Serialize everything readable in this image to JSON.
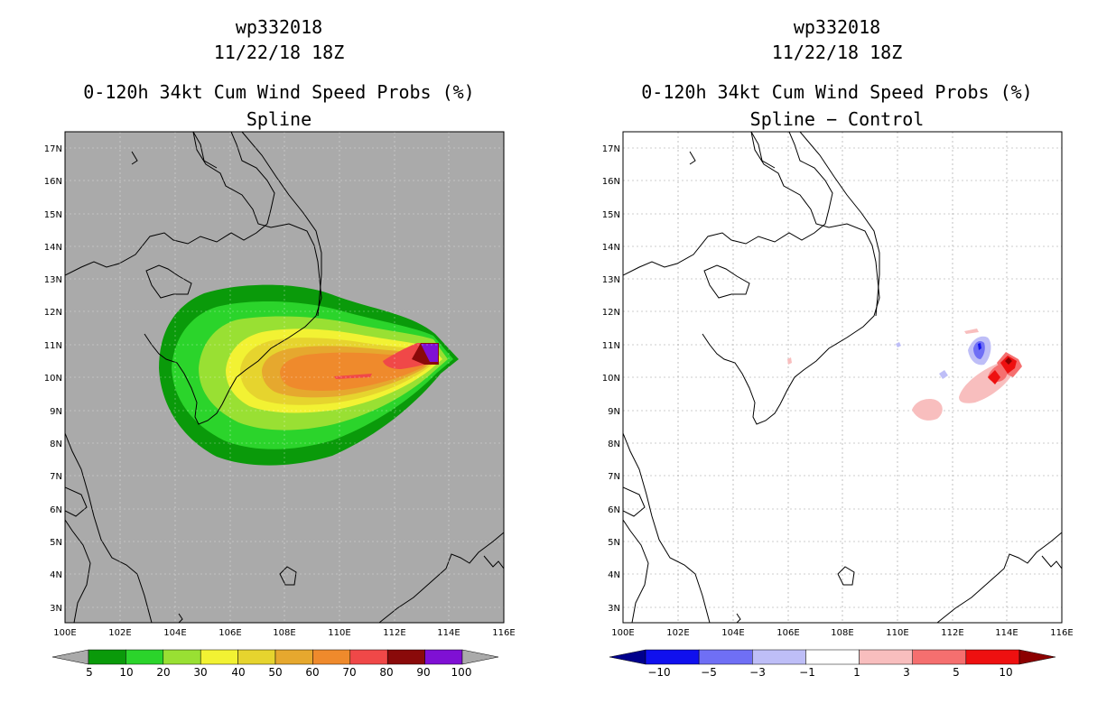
{
  "panels": [
    {
      "id": "left",
      "storm_id": "wp332018",
      "datetime": "11/22/18 18Z",
      "product_title": "0-120h 34kt Cum Wind Speed Probs (%)",
      "subtitle": "Spline",
      "background": "#aaaaaa",
      "colorbar": {
        "labels": [
          "5",
          "10",
          "20",
          "30",
          "40",
          "50",
          "60",
          "70",
          "80",
          "90",
          "100"
        ],
        "colors": [
          "#aaaaaa",
          "#0a9a0a",
          "#2bd42b",
          "#99e033",
          "#f2f233",
          "#e6d42e",
          "#e6a82e",
          "#ef8a2c",
          "#f04848",
          "#8a0a0a",
          "#7f10d4",
          "#aaaaaa"
        ]
      }
    },
    {
      "id": "right",
      "storm_id": "wp332018",
      "datetime": "11/22/18 18Z",
      "product_title": "0-120h 34kt Cum Wind Speed Probs (%)",
      "subtitle": "Spline − Control",
      "background": "#ffffff",
      "colorbar": {
        "labels": [
          "−10",
          "−5",
          "−3",
          "−1",
          "1",
          "3",
          "5",
          "10"
        ],
        "colors": [
          "#00008c",
          "#1010ee",
          "#6f6ff5",
          "#bebef7",
          "#ffffff",
          "#f8bebe",
          "#f56f6f",
          "#ee1010",
          "#8c0000"
        ]
      }
    }
  ],
  "map": {
    "lon_labels": [
      "100E",
      "102E",
      "104E",
      "106E",
      "108E",
      "110E",
      "112E",
      "114E",
      "116E"
    ],
    "lat_labels": [
      "3N",
      "4N",
      "5N",
      "6N",
      "7N",
      "8N",
      "9N",
      "10N",
      "11N",
      "12N",
      "13N",
      "14N",
      "15N",
      "16N",
      "17N"
    ]
  }
}
